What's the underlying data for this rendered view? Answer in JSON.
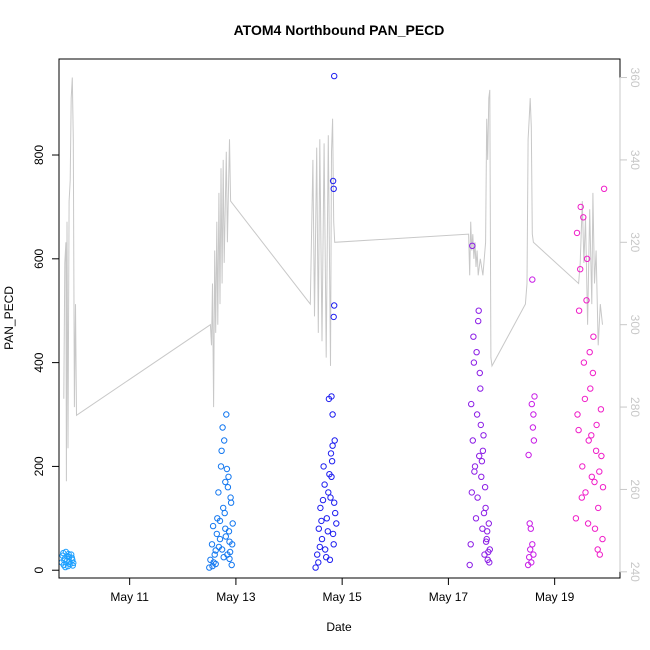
{
  "chart_data": {
    "type": "scatter",
    "title": "ATOM4 Northbound PAN_PECD",
    "xlabel": "Date",
    "ylabel": "PAN_PECD",
    "x_ticks": [
      {
        "label": "May 11",
        "value": 11
      },
      {
        "label": "May 13",
        "value": 13
      },
      {
        "label": "May 15",
        "value": 15
      },
      {
        "label": "May 17",
        "value": 17
      },
      {
        "label": "May 19",
        "value": 19
      }
    ],
    "xlim": [
      9.67,
      20.23
    ],
    "ylim": [
      -15,
      985
    ],
    "y_ticks": [
      0,
      200,
      400,
      600,
      800
    ],
    "y2lim": [
      238.5,
      364.5
    ],
    "y2_ticks": [
      240,
      260,
      280,
      300,
      320,
      340,
      360
    ],
    "legend": "none",
    "grid": false,
    "series": [
      {
        "color": "#1ea0ff",
        "points": [
          [
            9.72,
            15
          ],
          [
            9.74,
            28
          ],
          [
            9.76,
            10
          ],
          [
            9.78,
            22
          ],
          [
            9.8,
            35
          ],
          [
            9.82,
            18
          ],
          [
            9.84,
            8
          ],
          [
            9.86,
            25
          ],
          [
            9.88,
            12
          ],
          [
            9.9,
            30
          ],
          [
            9.92,
            20
          ],
          [
            9.94,
            14
          ],
          [
            9.75,
            33
          ],
          [
            9.79,
            6
          ],
          [
            9.83,
            27
          ],
          [
            9.87,
            16
          ],
          [
            9.91,
            24
          ],
          [
            9.93,
            9
          ],
          [
            9.77,
            19
          ],
          [
            9.85,
            31
          ]
        ]
      },
      {
        "color": "#1478f0",
        "points": [
          [
            12.5,
            5
          ],
          [
            12.52,
            20
          ],
          [
            12.55,
            50
          ],
          [
            12.57,
            85
          ],
          [
            12.6,
            30
          ],
          [
            12.62,
            12
          ],
          [
            12.65,
            100
          ],
          [
            12.67,
            150
          ],
          [
            12.7,
            60
          ],
          [
            12.72,
            200
          ],
          [
            12.74,
            40
          ],
          [
            12.76,
            120
          ],
          [
            12.78,
            250
          ],
          [
            12.8,
            80
          ],
          [
            12.82,
            300
          ],
          [
            12.84,
            30
          ],
          [
            12.86,
            180
          ],
          [
            12.88,
            55
          ],
          [
            12.9,
            140
          ],
          [
            12.92,
            10
          ],
          [
            12.94,
            90
          ],
          [
            12.58,
            15
          ],
          [
            12.64,
            70
          ],
          [
            12.68,
            45
          ],
          [
            12.73,
            230
          ],
          [
            12.77,
            25
          ],
          [
            12.81,
            65
          ],
          [
            12.85,
            160
          ],
          [
            12.89,
            35
          ],
          [
            12.93,
            50
          ],
          [
            12.75,
            275
          ],
          [
            12.79,
            110
          ],
          [
            12.83,
            195
          ],
          [
            12.87,
            75
          ],
          [
            12.91,
            130
          ],
          [
            12.56,
            8
          ],
          [
            12.62,
            38
          ],
          [
            12.7,
            95
          ],
          [
            12.8,
            170
          ],
          [
            12.88,
            22
          ]
        ]
      },
      {
        "color": "#1e1ef0",
        "points": [
          [
            14.5,
            5
          ],
          [
            14.53,
            30
          ],
          [
            14.56,
            80
          ],
          [
            14.59,
            120
          ],
          [
            14.62,
            60
          ],
          [
            14.65,
            200
          ],
          [
            14.68,
            40
          ],
          [
            14.71,
            100
          ],
          [
            14.74,
            150
          ],
          [
            14.77,
            20
          ],
          [
            14.8,
            180
          ],
          [
            14.83,
            70
          ],
          [
            14.86,
            250
          ],
          [
            14.89,
            90
          ],
          [
            14.75,
            330
          ],
          [
            14.78,
            140
          ],
          [
            14.81,
            210
          ],
          [
            14.84,
            50
          ],
          [
            14.87,
            110
          ],
          [
            14.55,
            15
          ],
          [
            14.61,
            95
          ],
          [
            14.67,
            165
          ],
          [
            14.73,
            75
          ],
          [
            14.79,
            225
          ],
          [
            14.85,
            130
          ],
          [
            14.8,
            335
          ],
          [
            14.82,
            300
          ],
          [
            14.84,
            735
          ],
          [
            14.83,
            750
          ],
          [
            14.85,
            510
          ],
          [
            14.84,
            488
          ],
          [
            14.85,
            952
          ],
          [
            14.58,
            45
          ],
          [
            14.64,
            135
          ],
          [
            14.7,
            25
          ],
          [
            14.76,
            185
          ],
          [
            14.82,
            240
          ]
        ]
      },
      {
        "color": "#8c1ee6",
        "points": [
          [
            17.4,
            10
          ],
          [
            17.42,
            50
          ],
          [
            17.44,
            150
          ],
          [
            17.46,
            250
          ],
          [
            17.48,
            400
          ],
          [
            17.5,
            200
          ],
          [
            17.52,
            100
          ],
          [
            17.54,
            300
          ],
          [
            17.56,
            480
          ],
          [
            17.58,
            220
          ],
          [
            17.6,
            350
          ],
          [
            17.62,
            180
          ],
          [
            17.64,
            80
          ],
          [
            17.66,
            260
          ],
          [
            17.68,
            30
          ],
          [
            17.7,
            120
          ],
          [
            17.72,
            60
          ],
          [
            17.74,
            20
          ],
          [
            17.76,
            90
          ],
          [
            17.78,
            40
          ],
          [
            17.45,
            625
          ],
          [
            17.47,
            450
          ],
          [
            17.53,
            420
          ],
          [
            17.57,
            500
          ],
          [
            17.61,
            280
          ],
          [
            17.65,
            230
          ],
          [
            17.69,
            160
          ],
          [
            17.73,
            75
          ],
          [
            17.77,
            15
          ],
          [
            17.43,
            320
          ],
          [
            17.49,
            190
          ],
          [
            17.55,
            140
          ],
          [
            17.59,
            380
          ],
          [
            17.63,
            210
          ],
          [
            17.67,
            110
          ],
          [
            17.71,
            55
          ],
          [
            17.75,
            35
          ]
        ]
      },
      {
        "color": "#c81ee6",
        "points": [
          [
            18.5,
            10
          ],
          [
            18.52,
            25
          ],
          [
            18.54,
            40
          ],
          [
            18.56,
            15
          ],
          [
            18.58,
            50
          ],
          [
            18.6,
            30
          ],
          [
            18.53,
            90
          ],
          [
            18.55,
            80
          ],
          [
            18.57,
            320
          ],
          [
            18.59,
            275
          ],
          [
            18.61,
            250
          ],
          [
            18.62,
            335
          ],
          [
            18.51,
            222
          ],
          [
            18.58,
            560
          ],
          [
            18.6,
            300
          ]
        ]
      },
      {
        "color": "#f01ec8",
        "points": [
          [
            19.4,
            100
          ],
          [
            19.43,
            300
          ],
          [
            19.46,
            500
          ],
          [
            19.49,
            700
          ],
          [
            19.52,
            200
          ],
          [
            19.55,
            400
          ],
          [
            19.58,
            150
          ],
          [
            19.61,
            600
          ],
          [
            19.64,
            250
          ],
          [
            19.67,
            350
          ],
          [
            19.7,
            180
          ],
          [
            19.73,
            450
          ],
          [
            19.76,
            80
          ],
          [
            19.79,
            280
          ],
          [
            19.82,
            120
          ],
          [
            19.85,
            30
          ],
          [
            19.88,
            220
          ],
          [
            19.91,
            160
          ],
          [
            19.42,
            650
          ],
          [
            19.48,
            580
          ],
          [
            19.54,
            680
          ],
          [
            19.6,
            520
          ],
          [
            19.66,
            420
          ],
          [
            19.72,
            380
          ],
          [
            19.78,
            230
          ],
          [
            19.84,
            190
          ],
          [
            19.9,
            60
          ],
          [
            19.93,
            735
          ],
          [
            19.45,
            270
          ],
          [
            19.51,
            140
          ],
          [
            19.57,
            330
          ],
          [
            19.63,
            90
          ],
          [
            19.69,
            260
          ],
          [
            19.75,
            170
          ],
          [
            19.81,
            40
          ],
          [
            19.87,
            310
          ]
        ]
      }
    ],
    "secondary_line": {
      "color": "#c8c8c8",
      "axis": "right",
      "points": [
        [
          9.76,
          282
        ],
        [
          9.78,
          315
        ],
        [
          9.8,
          320
        ],
        [
          9.81,
          262
        ],
        [
          9.82,
          325
        ],
        [
          9.84,
          270
        ],
        [
          9.86,
          330
        ],
        [
          9.88,
          335
        ],
        [
          9.9,
          355
        ],
        [
          9.92,
          360
        ],
        [
          9.94,
          345
        ],
        [
          9.96,
          280
        ],
        [
          9.98,
          305
        ],
        [
          10.0,
          278
        ],
        [
          12.52,
          300
        ],
        [
          12.54,
          295
        ],
        [
          12.56,
          310
        ],
        [
          12.58,
          280
        ],
        [
          12.6,
          318
        ],
        [
          12.62,
          298
        ],
        [
          12.64,
          325
        ],
        [
          12.66,
          300
        ],
        [
          12.68,
          332
        ],
        [
          12.7,
          305
        ],
        [
          12.72,
          338
        ],
        [
          12.74,
          310
        ],
        [
          12.76,
          340
        ],
        [
          12.78,
          315
        ],
        [
          12.82,
          342
        ],
        [
          12.84,
          320
        ],
        [
          12.88,
          345
        ],
        [
          12.9,
          330
        ],
        [
          14.4,
          305
        ],
        [
          14.45,
          340
        ],
        [
          14.48,
          302
        ],
        [
          14.52,
          343
        ],
        [
          14.55,
          298
        ],
        [
          14.58,
          345
        ],
        [
          14.62,
          296
        ],
        [
          14.66,
          344
        ],
        [
          14.7,
          292
        ],
        [
          14.74,
          346
        ],
        [
          14.78,
          290
        ],
        [
          14.8,
          342
        ],
        [
          14.82,
          350
        ],
        [
          14.84,
          325
        ],
        [
          14.86,
          320
        ],
        [
          17.38,
          322
        ],
        [
          17.4,
          312
        ],
        [
          17.42,
          325
        ],
        [
          17.44,
          318
        ],
        [
          17.46,
          322
        ],
        [
          17.48,
          316
        ],
        [
          17.5,
          320
        ],
        [
          17.52,
          314
        ],
        [
          17.54,
          318
        ],
        [
          17.56,
          312
        ],
        [
          17.6,
          316
        ],
        [
          17.65,
          312
        ],
        [
          17.7,
          320
        ],
        [
          17.72,
          350
        ],
        [
          17.74,
          340
        ],
        [
          17.76,
          355
        ],
        [
          17.78,
          357
        ],
        [
          17.8,
          292
        ],
        [
          17.82,
          290
        ],
        [
          18.45,
          305
        ],
        [
          18.48,
          310
        ],
        [
          18.5,
          345
        ],
        [
          18.52,
          350
        ],
        [
          18.54,
          355
        ],
        [
          18.56,
          348
        ],
        [
          18.58,
          322
        ],
        [
          18.6,
          320
        ],
        [
          19.45,
          310
        ],
        [
          19.48,
          315
        ],
        [
          19.5,
          322
        ],
        [
          19.52,
          330
        ],
        [
          19.55,
          315
        ],
        [
          19.58,
          326
        ],
        [
          19.62,
          300
        ],
        [
          19.66,
          328
        ],
        [
          19.7,
          305
        ],
        [
          19.72,
          332
        ],
        [
          19.75,
          310
        ],
        [
          19.78,
          318
        ],
        [
          19.82,
          295
        ],
        [
          19.86,
          305
        ],
        [
          19.9,
          300
        ]
      ]
    }
  }
}
